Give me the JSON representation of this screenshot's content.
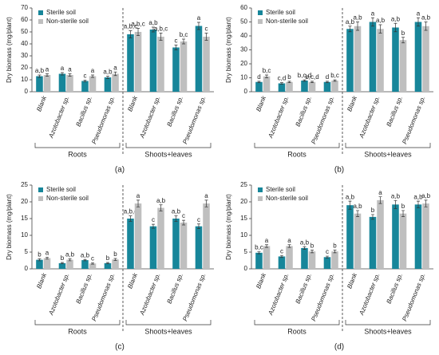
{
  "chart_data": [
    {
      "type": "bar",
      "panel": "(a)",
      "y_label": "Dry biomass  (mg/plant)",
      "ylim": [
        0,
        70
      ],
      "yticks": [
        0,
        10,
        20,
        30,
        40,
        50,
        60,
        70
      ],
      "categories": [
        "Blank",
        "Azotobacter sp.",
        "Bacillus sp.",
        "Pseudomonas sp.",
        "Blank",
        "Azotobacter sp.",
        "Bacillus sp.",
        "Pseudomonas sp."
      ],
      "groups": [
        "Roots",
        "Shoots+leaves"
      ],
      "series": [
        {
          "name": "Sterile soil",
          "color": "#17869a",
          "values": [
            13,
            15,
            9,
            12,
            48,
            52,
            37,
            55
          ],
          "errors": [
            1,
            1,
            0.8,
            1,
            3,
            2,
            2,
            3
          ],
          "letters": [
            "a,b",
            "a",
            "c",
            "a,b",
            "a,b,c",
            "a,b",
            "c",
            "a"
          ]
        },
        {
          "name": "Non-sterile soil",
          "color": "#bfbfbf",
          "values": [
            14,
            14,
            13,
            15,
            50,
            46,
            42,
            46
          ],
          "errors": [
            1,
            1,
            1,
            1.5,
            3,
            3,
            2,
            3
          ],
          "letters": [
            "a",
            "a",
            "a",
            "a",
            "a,b,c",
            "a,b,c",
            "b,c",
            "c"
          ]
        }
      ]
    },
    {
      "type": "bar",
      "panel": "(b)",
      "y_label": "Dry biomass (mg/plant)",
      "ylim": [
        0,
        60
      ],
      "yticks": [
        0,
        10,
        20,
        30,
        40,
        50,
        60
      ],
      "categories": [
        "Blank",
        "Azotobacter sp.",
        "Bacillus sp.",
        "Pseudomonas sp.",
        "Blank",
        "Azotobacter sp.",
        "Bacillus sp.",
        "Pseudomonas sp."
      ],
      "groups": [
        "Roots",
        "Shoots+leaves"
      ],
      "series": [
        {
          "name": "Sterile soil",
          "color": "#17869a",
          "values": [
            7,
            6,
            8,
            7,
            45,
            50,
            46,
            50
          ],
          "errors": [
            0.5,
            0.5,
            0.5,
            0.5,
            2,
            3,
            3,
            3
          ],
          "letters": [
            "d",
            "c,d",
            "b,c,d",
            "d",
            "a,b",
            "a",
            "a,b",
            "a"
          ]
        },
        {
          "name": "Non-sterile soil",
          "color": "#bfbfbf",
          "values": [
            11,
            7,
            7,
            8,
            47,
            45,
            37,
            47
          ],
          "errors": [
            1,
            0.5,
            0.5,
            0.5,
            3,
            3,
            2,
            3
          ],
          "letters": [
            "b,c",
            "b",
            "b,c,d",
            "b,c",
            "a,b",
            "a,b",
            "b",
            "a,b"
          ]
        }
      ]
    },
    {
      "type": "bar",
      "panel": "(c)",
      "y_label": "Dry biomass (mg/plant)",
      "ylim": [
        0,
        25
      ],
      "yticks": [
        0,
        5,
        10,
        15,
        20,
        25
      ],
      "categories": [
        "Blank",
        "Azotobacter sp.",
        "Bacillus sp.",
        "Pseudomonas sp.",
        "Blank",
        "Azotobacter sp.",
        "Bacillus sp.",
        "Pseudomonas sp."
      ],
      "groups": [
        "Roots",
        "Shoots+leaves"
      ],
      "series": [
        {
          "name": "Sterile soil",
          "color": "#17869a",
          "values": [
            2.7,
            1.7,
            2.6,
            1.7,
            15,
            12.7,
            15,
            12.7
          ],
          "errors": [
            0.3,
            0.2,
            0.2,
            0.2,
            0.8,
            0.6,
            0.8,
            0.7
          ],
          "letters": [
            "b",
            "b",
            "a,b",
            "b",
            "a,b,c",
            "c",
            "a,b",
            "c"
          ]
        },
        {
          "name": "Non-sterile soil",
          "color": "#bfbfbf",
          "values": [
            3.2,
            2.7,
            1.6,
            2.8,
            19.5,
            18.2,
            13.8,
            19.5
          ],
          "errors": [
            0.3,
            0.3,
            0.2,
            0.3,
            1,
            0.9,
            0.7,
            1
          ],
          "letters": [
            "a",
            "a,b",
            "c",
            "b",
            "a",
            "a,b",
            "c",
            "a"
          ]
        }
      ]
    },
    {
      "type": "bar",
      "panel": "(d)",
      "y_label": "Dry biomass (mg/plant)",
      "ylim": [
        0,
        25
      ],
      "yticks": [
        0,
        5,
        10,
        15,
        20,
        25
      ],
      "categories": [
        "Blank",
        "Azotobacter sp.",
        "Bacillus sp.",
        "Pseudomonas sp.",
        "Blank",
        "Azotobacter sp.",
        "Bacillus sp.",
        "Pseudomonas sp."
      ],
      "groups": [
        "Roots",
        "Shoots+leaves"
      ],
      "series": [
        {
          "name": "Sterile soil",
          "color": "#17869a",
          "values": [
            4.8,
            3.7,
            6.2,
            3.5,
            19,
            15.5,
            19.2,
            19.2
          ],
          "errors": [
            0.3,
            0.3,
            0.4,
            0.3,
            1.2,
            0.7,
            1.2,
            1
          ],
          "letters": [
            "b,c",
            "c",
            "a,b",
            "c",
            "a,b",
            "b",
            "a,b",
            "a,b"
          ]
        },
        {
          "name": "Non-sterile soil",
          "color": "#bfbfbf",
          "values": [
            6.8,
            6.8,
            5.2,
            5.2,
            16.5,
            20.5,
            16.5,
            19.5
          ],
          "errors": [
            0.4,
            0.4,
            0.4,
            0.4,
            0.9,
            1,
            0.9,
            1
          ],
          "letters": [
            "a",
            "a",
            "b",
            "b",
            "a,b",
            "a",
            "b",
            "a,b"
          ]
        }
      ]
    }
  ]
}
